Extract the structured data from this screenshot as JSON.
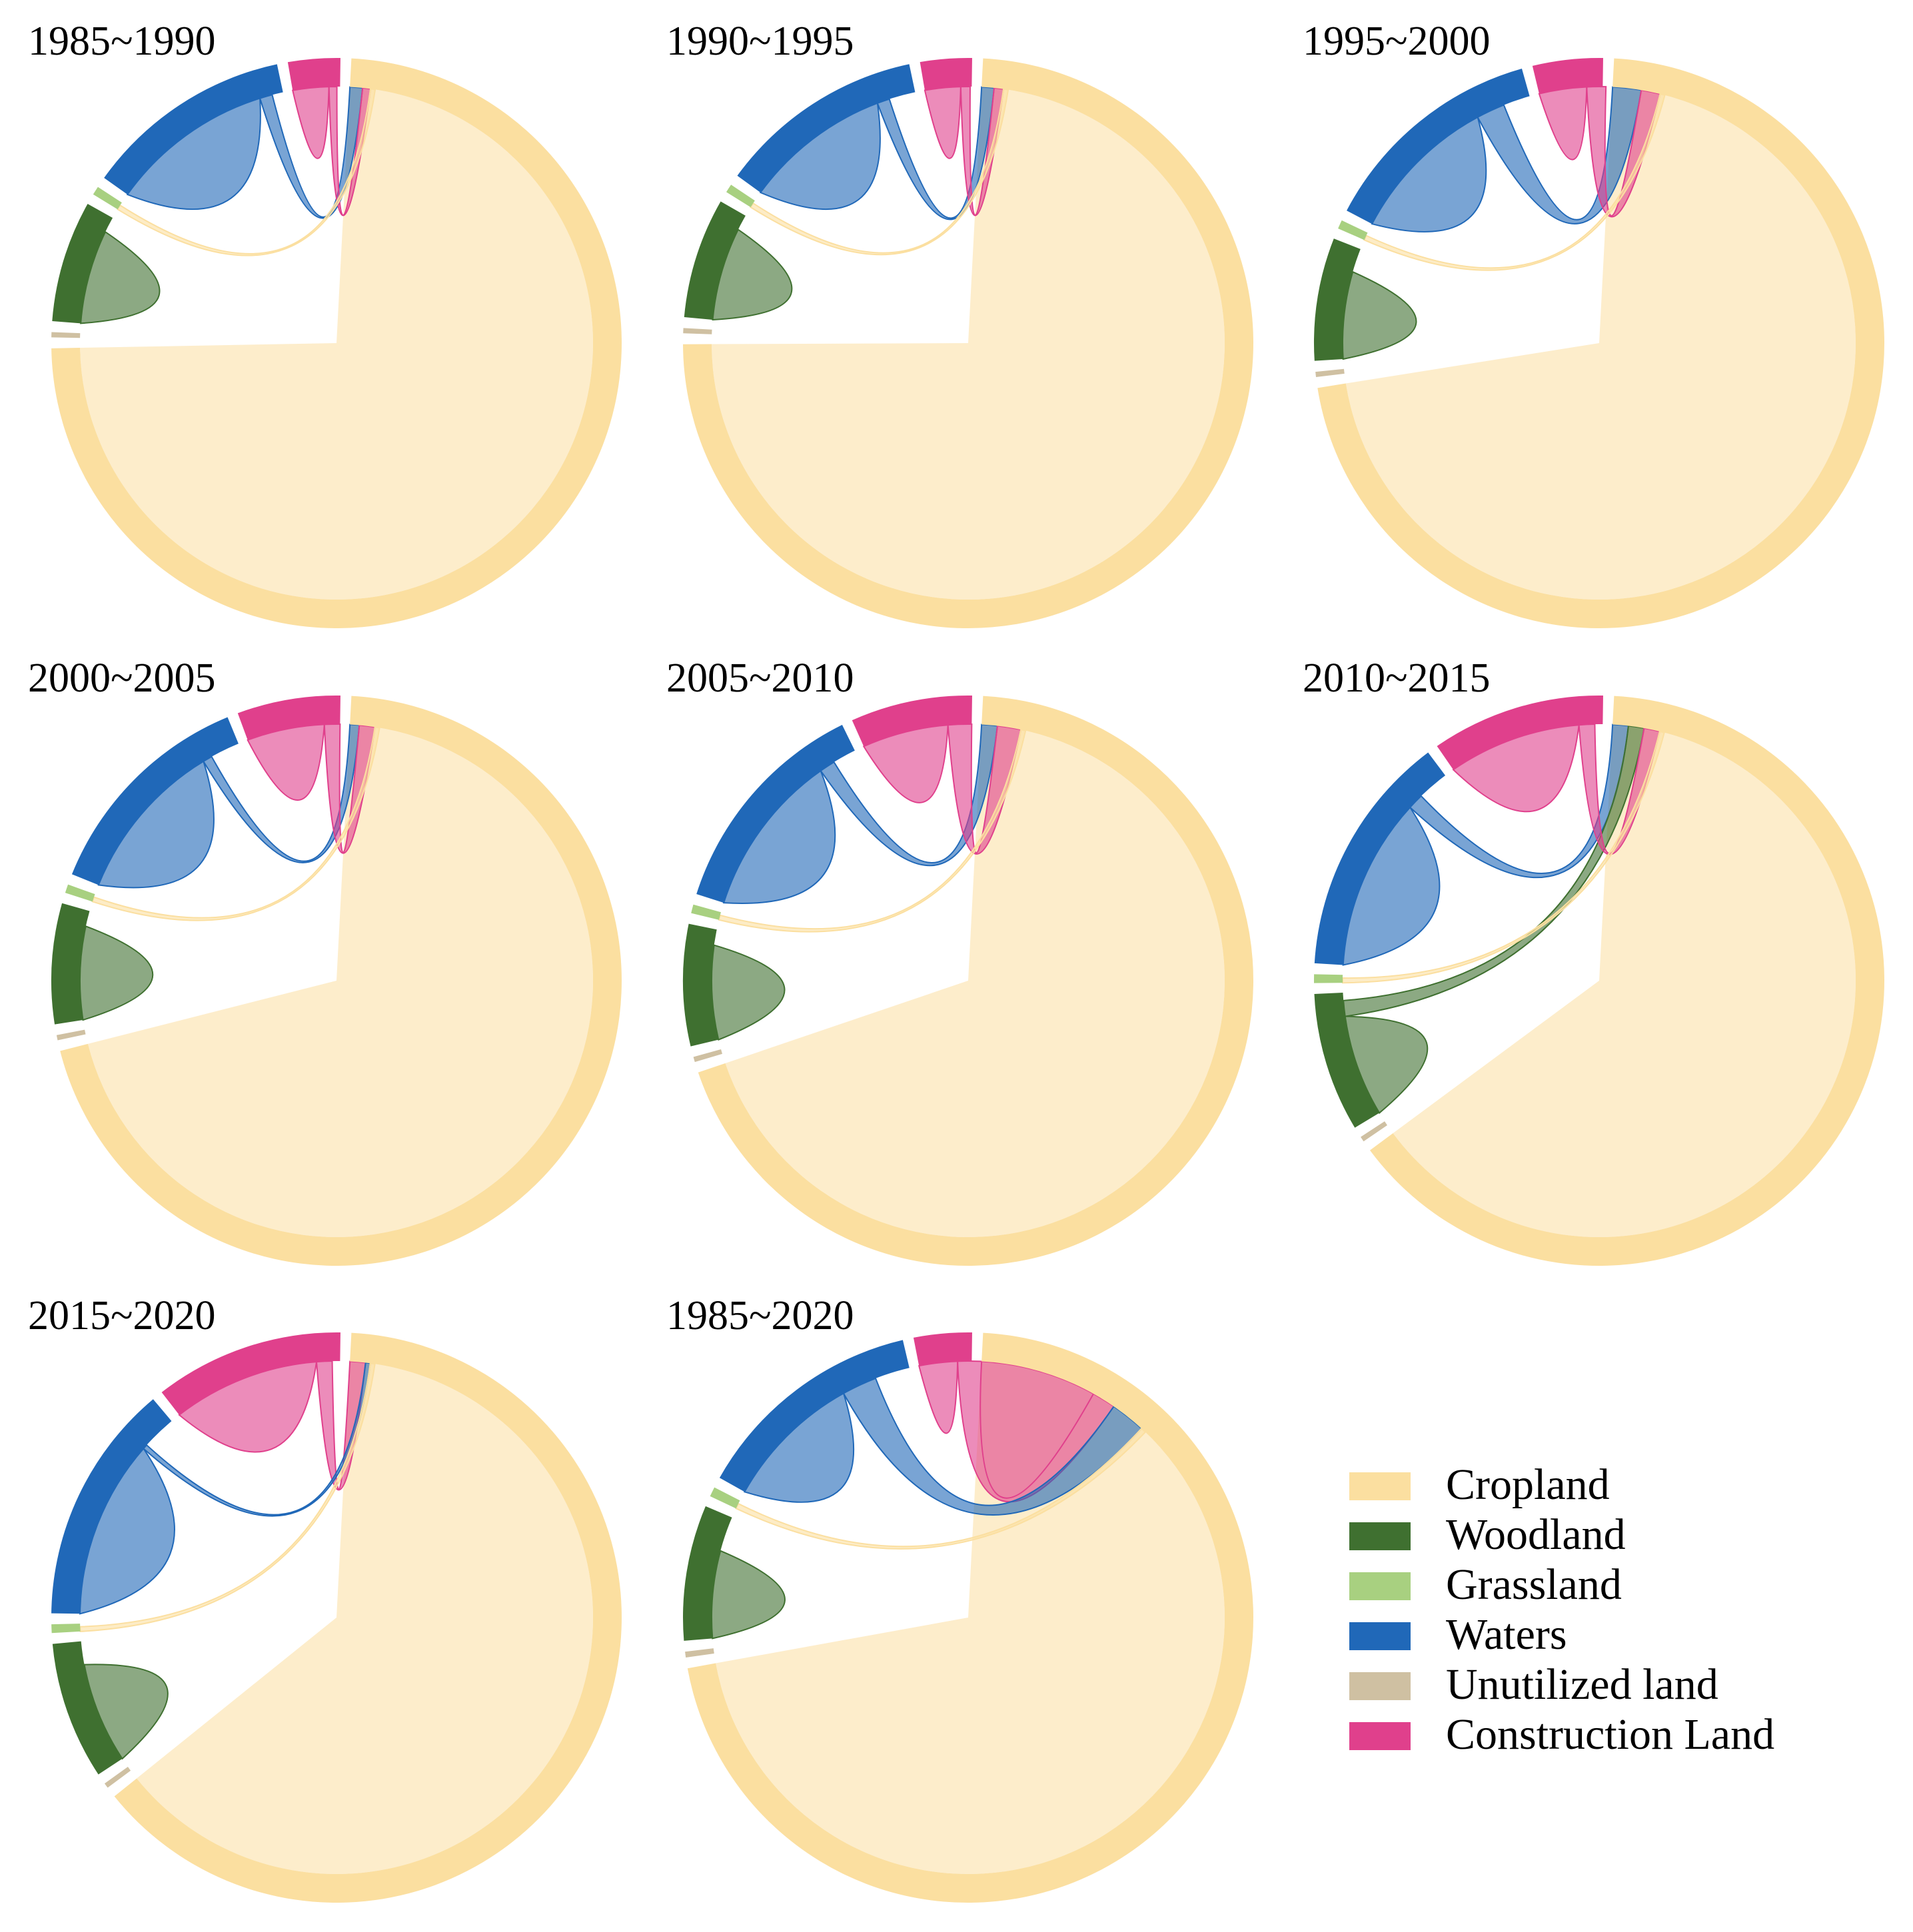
{
  "categories": [
    {
      "key": "cropland",
      "label": "Cropland",
      "color": "#FBDFA0"
    },
    {
      "key": "woodland",
      "label": "Woodland",
      "color": "#3F7030"
    },
    {
      "key": "grassland",
      "label": "Grassland",
      "color": "#A8D080"
    },
    {
      "key": "waters",
      "label": "Waters",
      "color": "#2068B8"
    },
    {
      "key": "unutilized",
      "label": "Unutilized land",
      "color": "#CFC0A2"
    },
    {
      "key": "construction",
      "label": "Construction Land",
      "color": "#E0408C"
    }
  ],
  "chart_data": [
    {
      "type": "chord",
      "title": "1985~1990",
      "sectors": {
        "cropland": 75,
        "woodland": 7,
        "grassland": 0.5,
        "waters": 12,
        "unutilized": 0.3,
        "construction": 3
      },
      "flows": [
        {
          "from": "waters",
          "to": "waters",
          "value": 10.5
        },
        {
          "from": "woodland",
          "to": "woodland",
          "value": 6.0
        },
        {
          "from": "construction",
          "to": "construction",
          "value": 2.3
        },
        {
          "from": "cropland",
          "to": "waters",
          "value": 0.8
        },
        {
          "from": "cropland",
          "to": "construction",
          "value": 0.5
        },
        {
          "from": "grassland",
          "to": "cropland",
          "value": 0.3
        }
      ]
    },
    {
      "type": "chord",
      "title": "1990~1995",
      "sectors": {
        "cropland": 76,
        "woodland": 7,
        "grassland": 0.5,
        "waters": 12,
        "unutilized": 0.3,
        "construction": 3
      },
      "flows": [
        {
          "from": "waters",
          "to": "waters",
          "value": 9.5
        },
        {
          "from": "woodland",
          "to": "woodland",
          "value": 6.0
        },
        {
          "from": "construction",
          "to": "construction",
          "value": 2.3
        },
        {
          "from": "cropland",
          "to": "waters",
          "value": 0.8
        },
        {
          "from": "cropland",
          "to": "construction",
          "value": 0.6
        },
        {
          "from": "grassland",
          "to": "cropland",
          "value": 0.3
        }
      ]
    },
    {
      "type": "chord",
      "title": "1995~2000",
      "sectors": {
        "cropland": 72,
        "woodland": 7,
        "grassland": 0.5,
        "waters": 13,
        "unutilized": 0.3,
        "construction": 4
      },
      "flows": [
        {
          "from": "waters",
          "to": "waters",
          "value": 9.5
        },
        {
          "from": "woodland",
          "to": "woodland",
          "value": 5.5
        },
        {
          "from": "construction",
          "to": "construction",
          "value": 3.0
        },
        {
          "from": "cropland",
          "to": "waters",
          "value": 1.8
        },
        {
          "from": "cropland",
          "to": "construction",
          "value": 1.2
        },
        {
          "from": "grassland",
          "to": "cropland",
          "value": 0.3
        }
      ]
    },
    {
      "type": "chord",
      "title": "2000~2005",
      "sectors": {
        "cropland": 72,
        "woodland": 7,
        "grassland": 0.5,
        "waters": 13,
        "unutilized": 0.3,
        "construction": 6
      },
      "flows": [
        {
          "from": "waters",
          "to": "waters",
          "value": 10.5
        },
        {
          "from": "woodland",
          "to": "woodland",
          "value": 6.0
        },
        {
          "from": "construction",
          "to": "construction",
          "value": 5.0
        },
        {
          "from": "cropland",
          "to": "waters",
          "value": 0.6
        },
        {
          "from": "cropland",
          "to": "construction",
          "value": 1.0
        },
        {
          "from": "grassland",
          "to": "cropland",
          "value": 0.3
        }
      ]
    },
    {
      "type": "chord",
      "title": "2005~2010",
      "sectors": {
        "cropland": 70,
        "woodland": 7,
        "grassland": 0.5,
        "waters": 13,
        "unutilized": 0.3,
        "construction": 7
      },
      "flows": [
        {
          "from": "waters",
          "to": "waters",
          "value": 10.5
        },
        {
          "from": "woodland",
          "to": "woodland",
          "value": 6.0
        },
        {
          "from": "construction",
          "to": "construction",
          "value": 5.5
        },
        {
          "from": "cropland",
          "to": "waters",
          "value": 1.0
        },
        {
          "from": "cropland",
          "to": "construction",
          "value": 1.5
        },
        {
          "from": "grassland",
          "to": "cropland",
          "value": 0.3
        }
      ]
    },
    {
      "type": "chord",
      "title": "2010~2015",
      "sectors": {
        "cropland": 65,
        "woodland": 8,
        "grassland": 0.5,
        "waters": 14,
        "unutilized": 0.3,
        "construction": 10
      },
      "flows": [
        {
          "from": "waters",
          "to": "waters",
          "value": 11.0
        },
        {
          "from": "woodland",
          "to": "woodland",
          "value": 6.5
        },
        {
          "from": "construction",
          "to": "construction",
          "value": 8.5
        },
        {
          "from": "cropland",
          "to": "waters",
          "value": 1.0
        },
        {
          "from": "cropland",
          "to": "woodland",
          "value": 1.0
        },
        {
          "from": "cropland",
          "to": "construction",
          "value": 1.0
        },
        {
          "from": "grassland",
          "to": "cropland",
          "value": 0.3
        }
      ]
    },
    {
      "type": "chord",
      "title": "2015~2020",
      "sectors": {
        "cropland": 65,
        "woodland": 8,
        "grassland": 0.5,
        "waters": 14,
        "unutilized": 0.3,
        "construction": 11
      },
      "flows": [
        {
          "from": "waters",
          "to": "waters",
          "value": 11.5
        },
        {
          "from": "woodland",
          "to": "woodland",
          "value": 6.5
        },
        {
          "from": "construction",
          "to": "construction",
          "value": 9.5
        },
        {
          "from": "cropland",
          "to": "construction",
          "value": 1.0
        },
        {
          "from": "cropland",
          "to": "waters",
          "value": 0.3
        },
        {
          "from": "grassland",
          "to": "cropland",
          "value": 0.3
        }
      ]
    },
    {
      "type": "chord",
      "title": "1985~2020",
      "sectors": {
        "cropland": 65,
        "woodland": 7,
        "grassland": 0.5,
        "waters": 12,
        "unutilized": 0.3,
        "construction": 3
      },
      "flows": [
        {
          "from": "waters",
          "to": "waters",
          "value": 8.0
        },
        {
          "from": "woodland",
          "to": "woodland",
          "value": 5.0
        },
        {
          "from": "construction",
          "to": "construction",
          "value": 2.2
        },
        {
          "from": "cropland",
          "to": "construction",
          "value": 8.0
        },
        {
          "from": "cropland",
          "to": "waters",
          "value": 2.0
        },
        {
          "from": "grassland",
          "to": "cropland",
          "value": 0.3
        }
      ]
    }
  ]
}
